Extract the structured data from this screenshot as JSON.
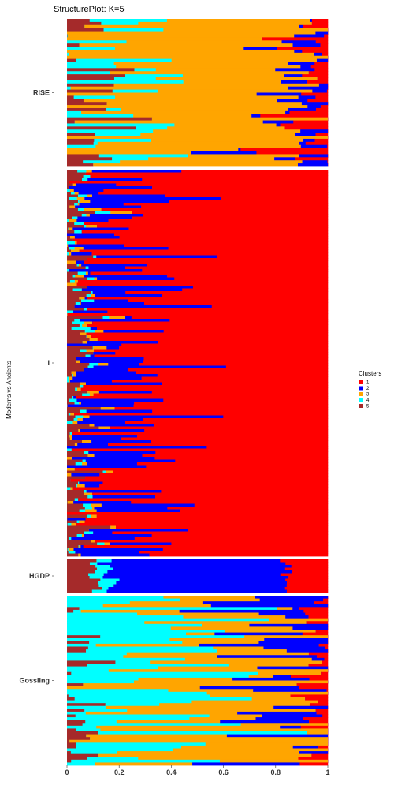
{
  "chart_data": {
    "type": "bar",
    "orientation": "horizontal-stacked",
    "title": "StructurePlot: K=5",
    "xlabel": "",
    "ylabel": "Moderns vs Ancients",
    "xlim": [
      0,
      1
    ],
    "x_ticks": [
      "0",
      "0.2",
      "0.4",
      "0.6",
      "0.8",
      "1"
    ],
    "grid": false,
    "legend_position": "right",
    "legend_title": "Clusters",
    "series": [
      {
        "name": "1",
        "color": "#ff0000"
      },
      {
        "name": "2",
        "color": "#0000ff"
      },
      {
        "name": "3",
        "color": "#ffa500"
      },
      {
        "name": "4",
        "color": "#00ffff"
      },
      {
        "name": "5",
        "color": "#a52a2a"
      }
    ],
    "stack_order": [
      5,
      4,
      3,
      2,
      1
    ],
    "groups": [
      {
        "name": "RISE",
        "n": 48,
        "profile": {
          "c5": [
            0.03,
            0.2
          ],
          "c4": [
            0.05,
            0.3
          ],
          "c3": [
            0.55,
            0.35
          ],
          "c2": [
            0.04,
            0.08
          ],
          "c1": [
            0.04,
            0.1
          ]
        }
      },
      {
        "name": "I",
        "n": 140,
        "profile": {
          "c5": [
            0.04,
            0.06
          ],
          "c4": [
            0.01,
            0.03
          ],
          "c3": [
            0.01,
            0.03
          ],
          "c2": [
            0.14,
            0.36
          ],
          "c1": [
            0.8,
            0.45
          ]
        }
      },
      {
        "name": "HGDP",
        "n": 12,
        "profile": {
          "c5": [
            0.11,
            0.03
          ],
          "c4": [
            0.05,
            0.03
          ],
          "c3": [
            0.0,
            0.0
          ],
          "c2": [
            0.68,
            0.03
          ],
          "c1": [
            0.16,
            0.03
          ]
        }
      },
      {
        "name": "Gossling",
        "n": 60,
        "profile": {
          "c5": [
            0.01,
            0.1
          ],
          "c4": [
            0.33,
            0.4
          ],
          "c3": [
            0.33,
            0.3
          ],
          "c2": [
            0.12,
            0.3
          ],
          "c1": [
            0.02,
            0.08
          ]
        }
      }
    ]
  }
}
